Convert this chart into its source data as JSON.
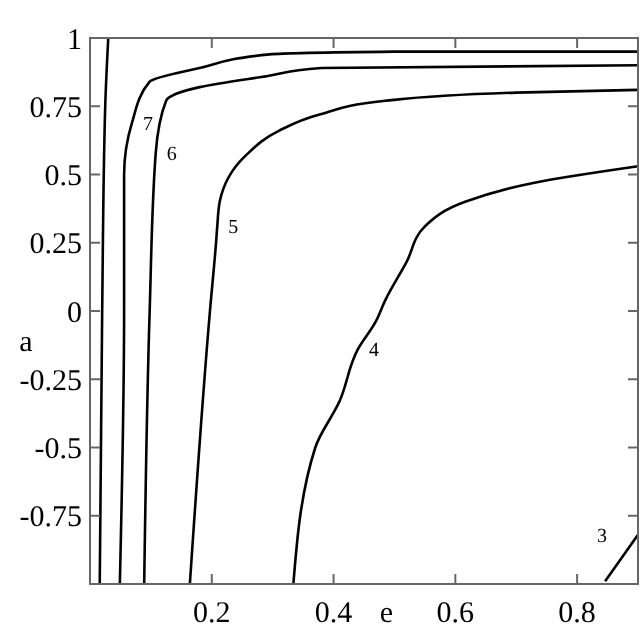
{
  "chart_data": {
    "type": "line",
    "xlabel": "e",
    "ylabel": "a",
    "xlim": [
      0,
      0.9
    ],
    "ylim": [
      -1,
      1
    ],
    "xticks": [
      0.2,
      0.4,
      0.6,
      0.8
    ],
    "yticks": [
      -0.75,
      -0.5,
      -0.25,
      0,
      0.25,
      0.5,
      0.75,
      1
    ],
    "grid": false,
    "marker": "none",
    "line_style": "solid",
    "series": [
      {
        "color": "#000000",
        "x": [
          0.016,
          0.02,
          0.025,
          0.03
        ],
        "values": [
          -1,
          0,
          0.75,
          1
        ]
      },
      {
        "color": "#000000",
        "x": [
          0.049,
          0.056,
          0.056,
          0.069,
          0.098,
          0.18,
          0.295,
          0.5,
          0.9
        ],
        "values": [
          -1,
          0,
          0.5,
          0.69,
          0.84,
          0.89,
          0.94,
          0.95,
          0.95
        ]
      },
      {
        "color": "#000000",
        "x": [
          0.089,
          0.098,
          0.108,
          0.125,
          0.18,
          0.29,
          0.38,
          0.9
        ],
        "values": [
          -1,
          0,
          0.58,
          0.77,
          0.82,
          0.86,
          0.89,
          0.9
        ]
      },
      {
        "color": "#000000",
        "x": [
          0.164,
          0.197,
          0.207,
          0.209,
          0.213,
          0.256,
          0.31,
          0.377,
          0.485,
          0.7,
          0.9
        ],
        "values": [
          -1,
          0,
          0.25,
          0.31,
          0.4,
          0.57,
          0.66,
          0.72,
          0.77,
          0.8,
          0.81
        ]
      },
      {
        "color": "#000000",
        "x": [
          0.334,
          0.37,
          0.41,
          0.44,
          0.469,
          0.485,
          0.52,
          0.55,
          0.616,
          0.73,
          0.9
        ],
        "values": [
          -1,
          -0.5,
          -0.33,
          -0.14,
          -0.04,
          0.04,
          0.18,
          0.31,
          0.4,
          0.47,
          0.53
        ]
      },
      {
        "color": "#000000",
        "x": [
          0.846,
          0.9
        ],
        "values": [
          -0.99,
          -0.82
        ]
      }
    ],
    "annotations": [
      {
        "text": "7",
        "x": 0.069,
        "y": 0.69
      },
      {
        "text": "6",
        "x": 0.108,
        "y": 0.58
      },
      {
        "text": "5",
        "x": 0.209,
        "y": 0.31
      },
      {
        "text": "4",
        "x": 0.44,
        "y": -0.14
      },
      {
        "text": "3",
        "x": 0.9,
        "y": -0.82
      }
    ]
  }
}
